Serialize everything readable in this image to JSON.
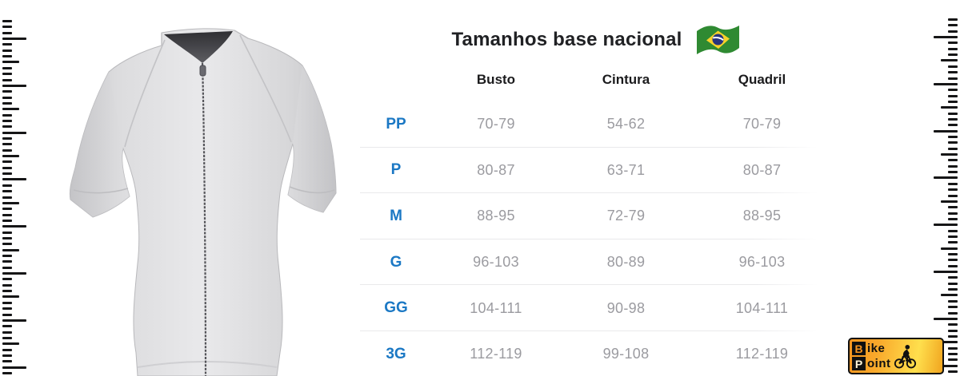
{
  "header": {
    "title": "Tamanhos base nacional",
    "flag_icon": "brazil-flag"
  },
  "size_table": {
    "columns": [
      "Busto",
      "Cintura",
      "Quadril"
    ],
    "rows": [
      {
        "size": "PP",
        "busto": "70-79",
        "cintura": "54-62",
        "quadril": "70-79"
      },
      {
        "size": "P",
        "busto": "80-87",
        "cintura": "63-71",
        "quadril": "80-87"
      },
      {
        "size": "M",
        "busto": "88-95",
        "cintura": "72-79",
        "quadril": "88-95"
      },
      {
        "size": "G",
        "busto": "96-103",
        "cintura": "80-89",
        "quadril": "96-103"
      },
      {
        "size": "GG",
        "busto": "104-111",
        "cintura": "90-98",
        "quadril": "104-111"
      },
      {
        "size": "3G",
        "busto": "112-119",
        "cintura": "99-108",
        "quadril": "112-119"
      }
    ]
  },
  "logo": {
    "word1_initial": "B",
    "word1_rest": "ike",
    "word2_initial": "P",
    "word2_rest": "oint"
  },
  "colors": {
    "size_label_blue": "#1b78c4",
    "value_gray": "#9b9ba0",
    "header_text": "#1b1b1d",
    "divider": "#e9e9eb",
    "flag_green": "#2f8a32",
    "flag_yellow": "#f8d22a",
    "flag_blue": "#28347d",
    "logo_orange": "#f7941e",
    "logo_yellow": "#ffdf4d"
  }
}
